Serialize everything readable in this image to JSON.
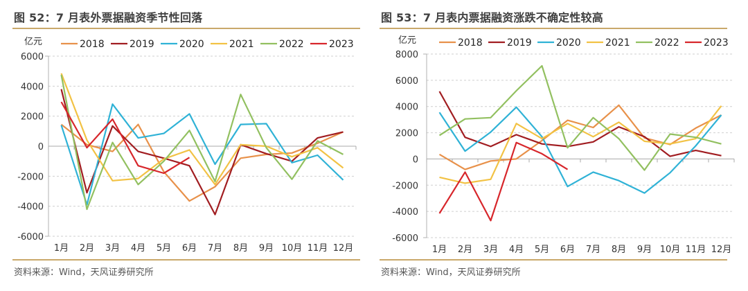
{
  "chart_data": [
    {
      "type": "line",
      "figure_label": "图 52：7 月表外票据融资季节性回落",
      "title": "图 52：7 月表外票据融资季节性回落",
      "unit_label": "亿元",
      "xlabel": "",
      "ylabel": "亿元",
      "categories": [
        "1月",
        "2月",
        "3月",
        "4月",
        "5月",
        "6月",
        "7月",
        "8月",
        "9月",
        "10月",
        "11月",
        "12月"
      ],
      "ylim": [
        -6000,
        6000
      ],
      "yticks": [
        6000,
        4000,
        2000,
        0,
        -2000,
        -4000,
        -6000
      ],
      "ytick_labels": [
        "6000",
        "4000",
        "2000",
        "0",
        "-2000",
        "-4000",
        "-6000"
      ],
      "grid": true,
      "legend_position": "top",
      "series": [
        {
          "name": "2018",
          "color": "#e8914a",
          "values": [
            1450,
            100,
            -350,
            1450,
            -1700,
            -3650,
            -2700,
            -800,
            -550,
            -450,
            200,
            950
          ]
        },
        {
          "name": "2019",
          "color": "#a11d21",
          "values": [
            3800,
            -3100,
            1350,
            -350,
            -800,
            -1300,
            -4550,
            100,
            -500,
            -1000,
            550,
            950
          ]
        },
        {
          "name": "2020",
          "color": "#2fb2d6",
          "values": [
            1400,
            -3900,
            2800,
            550,
            850,
            2150,
            -1200,
            1450,
            1500,
            -1100,
            -600,
            -2250
          ]
        },
        {
          "name": "2021",
          "color": "#f2c244",
          "values": [
            4850,
            400,
            -2300,
            -2150,
            -850,
            -250,
            -2550,
            100,
            0,
            -700,
            -100,
            -1450
          ]
        },
        {
          "name": "2022",
          "color": "#92c060",
          "values": [
            4750,
            -4200,
            250,
            -2550,
            -1000,
            1050,
            -2350,
            3450,
            -100,
            -2200,
            350,
            -550
          ]
        },
        {
          "name": "2023",
          "color": "#d7262b",
          "values": [
            2950,
            -100,
            1800,
            -1300,
            -1800,
            -750,
            null,
            null,
            null,
            null,
            null,
            null
          ]
        }
      ],
      "source": "资料来源：Wind，天风证券研究所"
    },
    {
      "type": "line",
      "figure_label": "图 53：7 月表内票据融资涨跌不确定性较高",
      "title": "图 53：7 月表内票据融资涨跌不确定性较高",
      "unit_label": "亿元",
      "xlabel": "",
      "ylabel": "亿元",
      "categories": [
        "1月",
        "2月",
        "3月",
        "4月",
        "5月",
        "6月",
        "7月",
        "8月",
        "9月",
        "10月",
        "11月",
        "12月"
      ],
      "ylim": [
        -6000,
        8000
      ],
      "yticks": [
        8000,
        6000,
        4000,
        2000,
        0,
        -2000,
        -4000,
        -6000
      ],
      "ytick_labels": [
        "8000",
        "6000",
        "4000",
        "2000",
        "0",
        "-2000",
        "-4000",
        "-6000"
      ],
      "grid": true,
      "legend_position": "top",
      "series": [
        {
          "name": "2018",
          "color": "#e8914a",
          "values": [
            350,
            -800,
            -150,
            0,
            1400,
            2950,
            2400,
            4100,
            1600,
            1100,
            2350,
            3350
          ]
        },
        {
          "name": "2019",
          "color": "#a11d21",
          "values": [
            5150,
            1650,
            950,
            1850,
            1150,
            950,
            1300,
            2450,
            1700,
            200,
            650,
            250
          ]
        },
        {
          "name": "2020",
          "color": "#2fb2d6",
          "values": [
            3550,
            600,
            2050,
            3950,
            1700,
            -2100,
            -1000,
            -1650,
            -2600,
            -1050,
            1000,
            3350
          ]
        },
        {
          "name": "2021",
          "color": "#f2c244",
          "values": [
            -1400,
            -1850,
            -1550,
            2700,
            1550,
            2700,
            1700,
            2800,
            1350,
            1150,
            1550,
            4050
          ]
        },
        {
          "name": "2022",
          "color": "#92c060",
          "values": [
            1800,
            3050,
            3150,
            5200,
            7100,
            850,
            3150,
            1550,
            -850,
            1900,
            1650,
            1150
          ]
        },
        {
          "name": "2023",
          "color": "#d7262b",
          "values": [
            -4150,
            -1000,
            -4700,
            1250,
            400,
            -800,
            null,
            null,
            null,
            null,
            null,
            null
          ]
        }
      ],
      "source": "资料来源：Wind，天风证券研究所"
    }
  ]
}
